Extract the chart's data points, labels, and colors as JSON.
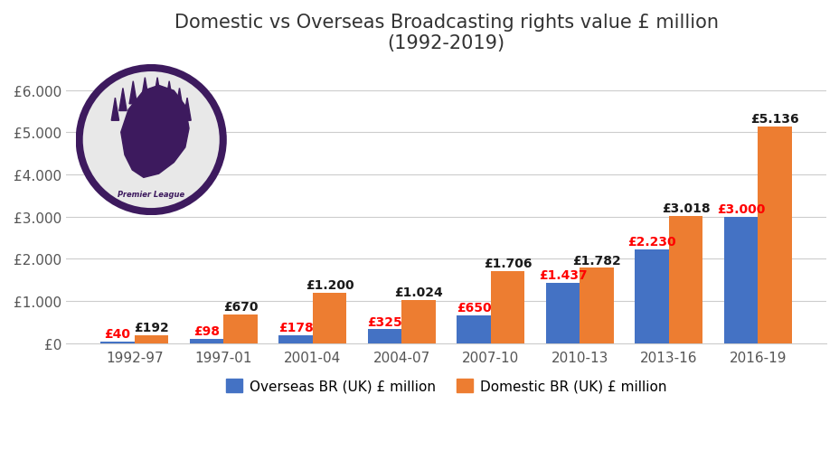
{
  "title": "Domestic vs Overseas Broadcasting rights value £ million\n(1992-2019)",
  "categories": [
    "1992-97",
    "1997-01",
    "2001-04",
    "2004-07",
    "2007-10",
    "2010-13",
    "2013-16",
    "2016-19"
  ],
  "overseas": [
    40,
    98,
    178,
    325,
    650,
    1437,
    2230,
    3000
  ],
  "domestic": [
    192,
    670,
    1200,
    1024,
    1706,
    1782,
    3018,
    5136
  ],
  "overseas_labels": [
    "£40",
    "£98",
    "£178",
    "£325",
    "£650",
    "£1.437",
    "£2.230",
    "£3.000"
  ],
  "domestic_labels": [
    "£192",
    "£670",
    "£1.200",
    "£1.024",
    "£1.706",
    "£1.782",
    "£3.018",
    "£5.136"
  ],
  "overseas_color": "#4472C4",
  "domestic_color": "#ED7D31",
  "overseas_label_color": "#FF0000",
  "domestic_label_color": "#1a1a1a",
  "ylabel_ticks": [
    "£0",
    "£1.000",
    "£2.000",
    "£3.000",
    "£4.000",
    "£5.000",
    "£6.000"
  ],
  "ytick_values": [
    0,
    1000,
    2000,
    3000,
    4000,
    5000,
    6000
  ],
  "ylim": [
    0,
    6700
  ],
  "background_color": "#FFFFFF",
  "legend_overseas": "Overseas BR (UK) £ million",
  "legend_domestic": "Domestic BR (UK) £ million",
  "title_fontsize": 15,
  "bar_width": 0.38,
  "tick_color": "#555555",
  "grid_color": "#CCCCCC",
  "label_fontsize": 10,
  "label_fontweight": "bold",
  "axis_tick_fontsize": 11
}
